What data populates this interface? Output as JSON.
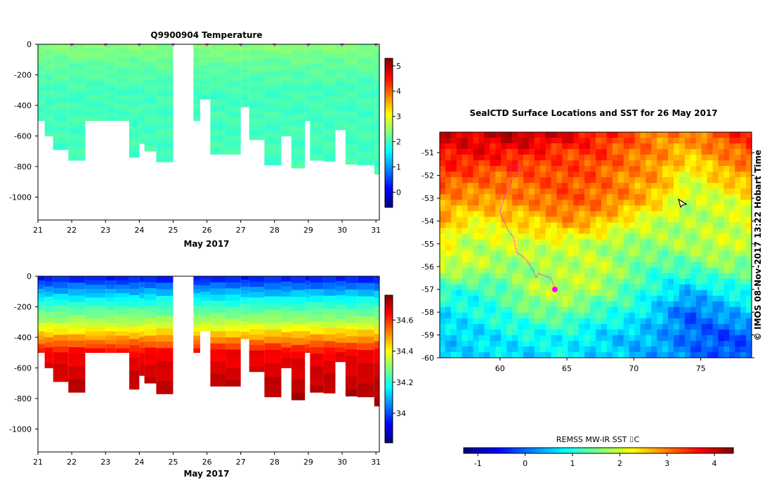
{
  "colors": {
    "jet": [
      "#00007f",
      "#0000ff",
      "#007fff",
      "#00ffff",
      "#7fff7f",
      "#ffff00",
      "#ff7f00",
      "#ff0000",
      "#7f0000"
    ],
    "marker": "#ff00ff",
    "axis": "#000000"
  },
  "chart_data": [
    {
      "id": "temperature",
      "type": "heatmap",
      "title": "Q9900904  Temperature",
      "xlabel": "May 2017",
      "ylabel": "",
      "x_ticks": [
        "21",
        "22",
        "23",
        "24",
        "25",
        "26",
        "27",
        "28",
        "29",
        "30",
        "31"
      ],
      "xlim": [
        21,
        31.1
      ],
      "y_ticks": [
        "0",
        "-200",
        "-400",
        "-600",
        "-800",
        "-1000"
      ],
      "ylim": [
        -1150,
        0
      ],
      "colorbar": {
        "ticks": [
          "0",
          "1",
          "2",
          "3",
          "4",
          "5"
        ],
        "range": [
          -0.6,
          5.3
        ]
      },
      "profile_markers": [
        22,
        23,
        24,
        25,
        26,
        27,
        28,
        29,
        30,
        31
      ],
      "profile_times": [
        21.0,
        21.2,
        21.45,
        21.9,
        22.4,
        23.0,
        23.3,
        23.7,
        24.0,
        24.15,
        24.5,
        25.6,
        25.8,
        26.1,
        26.55,
        27.0,
        27.25,
        27.7,
        28.2,
        28.5,
        28.9,
        29.05,
        29.45,
        29.8,
        30.1,
        30.45,
        30.95
      ],
      "profile_depths": [
        500,
        600,
        690,
        760,
        500,
        500,
        500,
        740,
        650,
        700,
        770,
        500,
        360,
        720,
        720,
        410,
        625,
        790,
        600,
        810,
        500,
        760,
        765,
        560,
        785,
        790,
        850
      ],
      "gap": [
        25.0,
        25.5
      ],
      "layers": [
        {
          "top": 0,
          "bottom": 150,
          "value": 2.4
        },
        {
          "top": 150,
          "bottom": 300,
          "value": 2.0
        },
        {
          "top": 300,
          "bottom": 900,
          "value": 2.0
        }
      ]
    },
    {
      "id": "salinity",
      "type": "heatmap",
      "title": "",
      "xlabel": "May 2017",
      "ylabel": "",
      "x_ticks": [
        "21",
        "22",
        "23",
        "24",
        "25",
        "26",
        "27",
        "28",
        "29",
        "30",
        "31"
      ],
      "xlim": [
        21,
        31.1
      ],
      "y_ticks": [
        "0",
        "-200",
        "-400",
        "-600",
        "-800",
        "-1000"
      ],
      "ylim": [
        -1150,
        0
      ],
      "colorbar": {
        "ticks": [
          "34",
          "34.2",
          "34.4",
          "34.6"
        ],
        "range": [
          33.81,
          34.76
        ]
      },
      "layers": [
        {
          "top": 0,
          "bottom": 150,
          "value": 33.93
        },
        {
          "top": 150,
          "bottom": 300,
          "value": 34.33
        },
        {
          "top": 300,
          "bottom": 900,
          "value": 34.6
        }
      ]
    },
    {
      "id": "sst-map",
      "type": "heatmap",
      "title": "SealCTD Surface Locations and SST for 26 May 2017",
      "xlabel": "",
      "ylabel": "",
      "x_ticks": [
        "60",
        "65",
        "70",
        "75"
      ],
      "xlim": [
        55.5,
        78.8
      ],
      "y_ticks": [
        "-51",
        "-52",
        "-53",
        "-54",
        "-55",
        "-56",
        "-57",
        "-58",
        "-59",
        "-60"
      ],
      "ylim": [
        -60,
        -50.1
      ],
      "colorbar": {
        "label": "REMSS MW-IR SST ⌷C",
        "ticks": [
          "-1",
          "0",
          "1",
          "2",
          "3",
          "4"
        ],
        "range": [
          -1.3,
          4.4
        ]
      },
      "track": [
        [
          60.4,
          -52.2
        ],
        [
          60.6,
          -52.0
        ],
        [
          60.8,
          -51.7
        ],
        [
          61.2,
          -51.5
        ],
        [
          61.5,
          -51.7
        ],
        [
          61.2,
          -52.0
        ],
        [
          60.8,
          -52.3
        ],
        [
          60.4,
          -52.8
        ],
        [
          60.2,
          -53.2
        ],
        [
          60.0,
          -53.6
        ],
        [
          60.3,
          -54.0
        ],
        [
          60.6,
          -54.4
        ],
        [
          61.0,
          -54.7
        ],
        [
          61.1,
          -55.0
        ],
        [
          61.3,
          -55.4
        ],
        [
          61.8,
          -55.6
        ],
        [
          62.2,
          -55.9
        ],
        [
          62.5,
          -56.2
        ],
        [
          62.7,
          -56.5
        ],
        [
          62.9,
          -56.3
        ],
        [
          63.3,
          -56.4
        ],
        [
          63.8,
          -56.5
        ],
        [
          64.0,
          -56.8
        ],
        [
          64.1,
          -57.0
        ]
      ],
      "current_position": [
        64.1,
        -57.0
      ],
      "ship_position": [
        73.6,
        -53.2
      ],
      "sst_field": [
        [
          3.9,
          3.9,
          4.1,
          4.1,
          3.9,
          3.6,
          3.3,
          3.0,
          2.9,
          3.4,
          3.6
        ],
        [
          3.6,
          3.7,
          3.6,
          3.5,
          3.3,
          3.4,
          3.1,
          2.9,
          2.6,
          2.9,
          3.2
        ],
        [
          3.3,
          3.2,
          3.1,
          3.2,
          3.3,
          3.2,
          2.9,
          2.8,
          2.0,
          2.6,
          2.8
        ],
        [
          2.9,
          2.8,
          2.9,
          3.0,
          3.2,
          3.1,
          2.9,
          2.5,
          1.9,
          2.0,
          2.3
        ],
        [
          2.7,
          2.2,
          2.4,
          2.5,
          2.8,
          2.7,
          2.2,
          1.9,
          1.8,
          1.9,
          2.1
        ],
        [
          2.3,
          1.8,
          2.0,
          2.0,
          2.0,
          1.8,
          1.6,
          1.7,
          1.8,
          2.0,
          1.9
        ],
        [
          1.9,
          2.0,
          1.6,
          1.7,
          1.8,
          2.0,
          1.6,
          1.2,
          1.3,
          1.6,
          1.4
        ],
        [
          1.2,
          1.0,
          1.3,
          1.9,
          1.9,
          1.8,
          1.3,
          0.9,
          0.5,
          0.8,
          1.1
        ],
        [
          0.7,
          0.9,
          1.1,
          1.4,
          1.5,
          1.1,
          1.0,
          0.5,
          -0.1,
          0.3,
          0.6
        ],
        [
          0.6,
          0.6,
          0.8,
          0.9,
          0.9,
          0.7,
          0.5,
          0.4,
          0.0,
          -0.2,
          0.0
        ],
        [
          0.5,
          0.7,
          0.6,
          0.6,
          0.8,
          0.6,
          0.5,
          0.3,
          0.1,
          -0.1,
          -0.2
        ]
      ],
      "side_label": "© IMOS 08-Nov-2017 13:22 Hobart Time"
    }
  ]
}
